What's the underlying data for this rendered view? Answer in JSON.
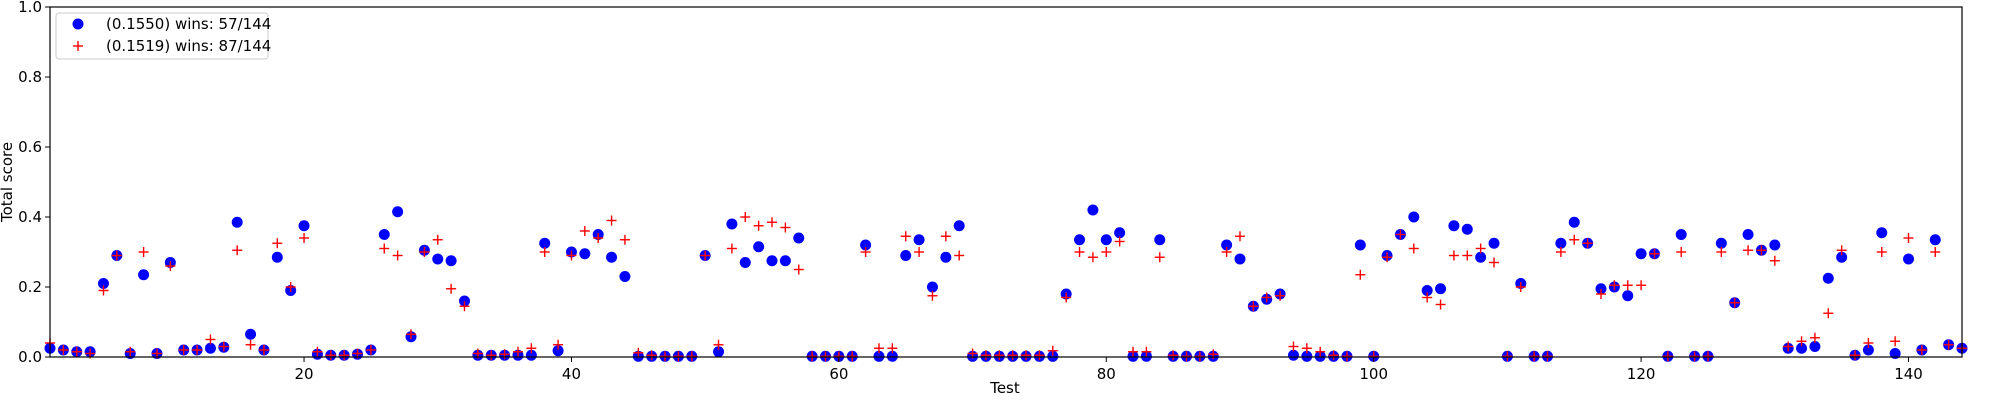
{
  "colors": {
    "series_a": "#0000ff",
    "series_b": "#ff0000",
    "axes": "#000000",
    "background": "#ffffff",
    "legend_border": "#cccccc"
  },
  "chart_data": {
    "type": "scatter",
    "title": "",
    "xlabel": "Test",
    "ylabel": "Total score",
    "xlim": [
      1,
      144
    ],
    "ylim": [
      0.0,
      1.0
    ],
    "grid": false,
    "legend_position": "top-left",
    "x_ticks": [
      20,
      40,
      60,
      80,
      100,
      120,
      140
    ],
    "x_tick_labels": [
      "20",
      "40",
      "60",
      "80",
      "100",
      "120",
      "140"
    ],
    "y_ticks": [
      0.0,
      0.2,
      0.4,
      0.6,
      0.8,
      1.0
    ],
    "y_tick_labels": [
      "0.0",
      "0.2",
      "0.4",
      "0.6",
      "0.8",
      "1.0"
    ],
    "x": [
      1,
      2,
      3,
      4,
      5,
      6,
      7,
      8,
      9,
      10,
      11,
      12,
      13,
      14,
      15,
      16,
      17,
      18,
      19,
      20,
      21,
      22,
      23,
      24,
      25,
      26,
      27,
      28,
      29,
      30,
      31,
      32,
      33,
      34,
      35,
      36,
      37,
      38,
      39,
      40,
      41,
      42,
      43,
      44,
      45,
      46,
      47,
      48,
      49,
      50,
      51,
      52,
      53,
      54,
      55,
      56,
      57,
      58,
      59,
      60,
      61,
      62,
      63,
      64,
      65,
      66,
      67,
      68,
      69,
      70,
      71,
      72,
      73,
      74,
      75,
      76,
      77,
      78,
      79,
      80,
      81,
      82,
      83,
      84,
      85,
      86,
      87,
      88,
      89,
      90,
      91,
      92,
      93,
      94,
      95,
      96,
      97,
      98,
      99,
      100,
      101,
      102,
      103,
      104,
      105,
      106,
      107,
      108,
      109,
      110,
      111,
      112,
      113,
      114,
      115,
      116,
      117,
      118,
      119,
      120,
      121,
      122,
      123,
      124,
      125,
      126,
      127,
      128,
      129,
      130,
      131,
      132,
      133,
      134,
      135,
      136,
      137,
      138,
      139,
      140,
      141,
      142,
      143,
      144
    ],
    "series": [
      {
        "name": "(0.1550) wins: 57/144",
        "marker": "circle",
        "color": "#0000ff",
        "values": [
          0.025,
          0.02,
          0.015,
          0.015,
          0.21,
          0.29,
          0.01,
          0.235,
          0.01,
          0.27,
          0.02,
          0.02,
          0.025,
          0.028,
          0.385,
          0.065,
          0.02,
          0.285,
          0.19,
          0.375,
          0.008,
          0.005,
          0.005,
          0.008,
          0.02,
          0.35,
          0.415,
          0.058,
          0.305,
          0.28,
          0.275,
          0.16,
          0.005,
          0.005,
          0.005,
          0.005,
          0.005,
          0.325,
          0.018,
          0.3,
          0.295,
          0.35,
          0.285,
          0.23,
          0.002,
          0.002,
          0.002,
          0.002,
          0.002,
          0.29,
          0.015,
          0.38,
          0.27,
          0.315,
          0.275,
          0.275,
          0.34,
          0.002,
          0.002,
          0.002,
          0.002,
          0.32,
          0.002,
          0.002,
          0.29,
          0.335,
          0.2,
          0.285,
          0.375,
          0.002,
          0.002,
          0.002,
          0.002,
          0.002,
          0.002,
          0.002,
          0.18,
          0.335,
          0.42,
          0.335,
          0.355,
          0.002,
          0.002,
          0.335,
          0.002,
          0.002,
          0.002,
          0.002,
          0.32,
          0.28,
          0.145,
          0.165,
          0.18,
          0.005,
          0.002,
          0.002,
          0.002,
          0.002,
          0.32,
          0.002,
          0.29,
          0.35,
          0.4,
          0.19,
          0.195,
          0.375,
          0.365,
          0.285,
          0.325,
          0.002,
          0.21,
          0.002,
          0.002,
          0.325,
          0.385,
          0.325,
          0.195,
          0.2,
          0.175,
          0.295,
          0.295,
          0.002,
          0.35,
          0.002,
          0.002,
          0.325,
          0.155,
          0.35,
          0.305,
          0.32,
          0.025,
          0.025,
          0.03,
          0.225,
          0.285,
          0.005,
          0.02,
          0.355,
          0.01,
          0.28,
          0.02,
          0.335,
          0.035,
          0.025
        ]
      },
      {
        "name": "(0.1519) wins: 87/144",
        "marker": "plus",
        "color": "#ff0000",
        "values": [
          0.04,
          0.02,
          0.015,
          0.01,
          0.19,
          0.29,
          0.015,
          0.3,
          0.01,
          0.26,
          0.02,
          0.02,
          0.05,
          0.03,
          0.305,
          0.035,
          0.02,
          0.325,
          0.2,
          0.34,
          0.015,
          0.005,
          0.005,
          0.01,
          0.02,
          0.31,
          0.29,
          0.065,
          0.3,
          0.335,
          0.195,
          0.145,
          0.01,
          0.005,
          0.008,
          0.015,
          0.025,
          0.3,
          0.035,
          0.29,
          0.36,
          0.34,
          0.39,
          0.335,
          0.012,
          0.005,
          0.002,
          0.002,
          0.002,
          0.29,
          0.035,
          0.31,
          0.4,
          0.375,
          0.385,
          0.37,
          0.25,
          0.002,
          0.002,
          0.002,
          0.002,
          0.3,
          0.025,
          0.025,
          0.345,
          0.3,
          0.175,
          0.345,
          0.29,
          0.01,
          0.005,
          0.005,
          0.005,
          0.005,
          0.005,
          0.018,
          0.17,
          0.3,
          0.285,
          0.3,
          0.33,
          0.015,
          0.015,
          0.285,
          0.005,
          0.002,
          0.002,
          0.008,
          0.3,
          0.345,
          0.145,
          0.17,
          0.175,
          0.03,
          0.025,
          0.015,
          0.005,
          0.002,
          0.235,
          0.002,
          0.285,
          0.35,
          0.31,
          0.17,
          0.15,
          0.29,
          0.29,
          0.31,
          0.27,
          0.002,
          0.2,
          0.002,
          0.002,
          0.3,
          0.335,
          0.325,
          0.18,
          0.205,
          0.205,
          0.205,
          0.295,
          0.002,
          0.3,
          0.002,
          0.002,
          0.3,
          0.155,
          0.305,
          0.305,
          0.275,
          0.03,
          0.045,
          0.055,
          0.125,
          0.305,
          0.005,
          0.04,
          0.3,
          0.045,
          0.34,
          0.02,
          0.3,
          0.035,
          0.025
        ]
      }
    ]
  }
}
